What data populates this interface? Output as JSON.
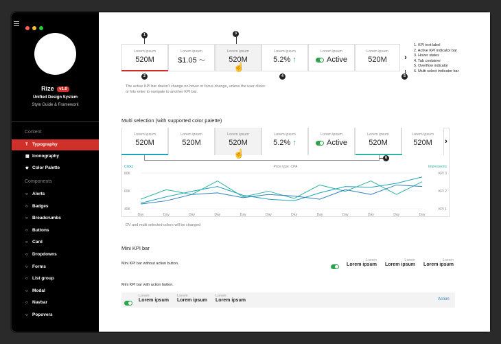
{
  "colors": {
    "accent": "#d0302a",
    "teal": "#1fa3b8",
    "green": "#2ea44f",
    "sidebar_bg": "#000000"
  },
  "sidebar": {
    "brand_name": "Rize",
    "version": "v1.0",
    "subtitle1": "Unified Design System",
    "subtitle2": "Style Guide & Framework",
    "section_content": "Content",
    "section_components": "Components",
    "content_items": [
      {
        "label": "Typography",
        "icon": "typography-icon"
      },
      {
        "label": "Iconography",
        "icon": "grid-icon"
      },
      {
        "label": "Color Palette",
        "icon": "palette-icon"
      }
    ],
    "component_items": [
      "Alerts",
      "Badges",
      "Breadcrumbs",
      "Buttons",
      "Card",
      "Dropdowns",
      "Forms",
      "List group",
      "Modal",
      "Navbar",
      "Popovers"
    ]
  },
  "kpi_single": {
    "cards": [
      {
        "label": "Lorem ipsum",
        "value": "520M"
      },
      {
        "label": "Lorem ipsum",
        "value": "$1.05"
      },
      {
        "label": "Lorem ipsum",
        "value": "520M"
      },
      {
        "label": "Lorem ipsum",
        "value": "5.2%"
      },
      {
        "label": "Lorem ipsum",
        "value": "Active"
      },
      {
        "label": "Lorem ipsum",
        "value": "520M"
      }
    ],
    "overflow_glyph": "›",
    "legend": [
      "1. KPI text label",
      "2. Active KPI indicator bar",
      "3. Hover states",
      "4. Tab container",
      "5. Overflow indicator",
      "6. Multi select indicator bar"
    ],
    "note1": "The active KPI bar doesn't change on hover or focus change, unless the user clicks",
    "note2": "or hits enter to navigate to another KPI bar.",
    "markers": [
      "1",
      "2",
      "3",
      "4",
      "5"
    ]
  },
  "multi": {
    "heading": "Multi selection (with supported color palette)",
    "cards": [
      {
        "label": "Lorem ipsum",
        "value": "520M"
      },
      {
        "label": "Lorem ipsum",
        "value": "520M"
      },
      {
        "label": "Lorem ipsum",
        "value": "520M"
      },
      {
        "label": "Lorem ipsum",
        "value": "5.2%"
      },
      {
        "label": "Lorem ipsum",
        "value": "Active"
      },
      {
        "label": "Lorem ipsum",
        "value": "520M"
      },
      {
        "label": "Lorem ipsum",
        "value": "520M"
      }
    ],
    "overflow_glyph": "›",
    "marker": "6",
    "note": "DV and multi selected colors will be changed"
  },
  "chart_data": {
    "type": "line",
    "title": "Price type: CPA",
    "left_label": "Clicks",
    "right_label": "Impressions",
    "y_ticks": [
      "80K",
      "60K",
      "40K"
    ],
    "right_ticks": [
      "KPI 3",
      "KPI 2",
      "KPI 1"
    ],
    "categories": [
      "Day",
      "Day",
      "Day",
      "Day",
      "Day",
      "Day",
      "Day",
      "Day",
      "Day",
      "Day",
      "Day",
      "Day"
    ],
    "series": [
      {
        "color": "#1fa3b8",
        "values": [
          47,
          55,
          62,
          68,
          57,
          52,
          50,
          60,
          68,
          67,
          72,
          80
        ]
      },
      {
        "color": "#2bb3a0",
        "values": [
          52,
          64,
          58,
          75,
          55,
          62,
          53,
          70,
          62,
          75,
          58,
          74
        ]
      },
      {
        "color": "#2a7fbf",
        "values": [
          46,
          50,
          58,
          60,
          54,
          58,
          56,
          52,
          64,
          58,
          70,
          68
        ]
      }
    ],
    "ylim": [
      40,
      85
    ]
  },
  "mini": {
    "heading": "Mini KPI bar",
    "without_label": "Mini KPI bar without action button.",
    "with_label": "Mini KPI bar with action button.",
    "items_right": [
      {
        "label": "Lorem",
        "value": "Lorem ipsum"
      },
      {
        "label": "Lorem",
        "value": "Lorem ipsum"
      },
      {
        "label": "Lorem",
        "value": "Lorem ipsum"
      }
    ],
    "items_left": [
      {
        "label": "Lorem",
        "value": "Lorem ipsum"
      },
      {
        "label": "Lorem",
        "value": "Lorem ipsum"
      },
      {
        "label": "Lorem",
        "value": "Lorem ipsum"
      }
    ],
    "action": "Action"
  }
}
